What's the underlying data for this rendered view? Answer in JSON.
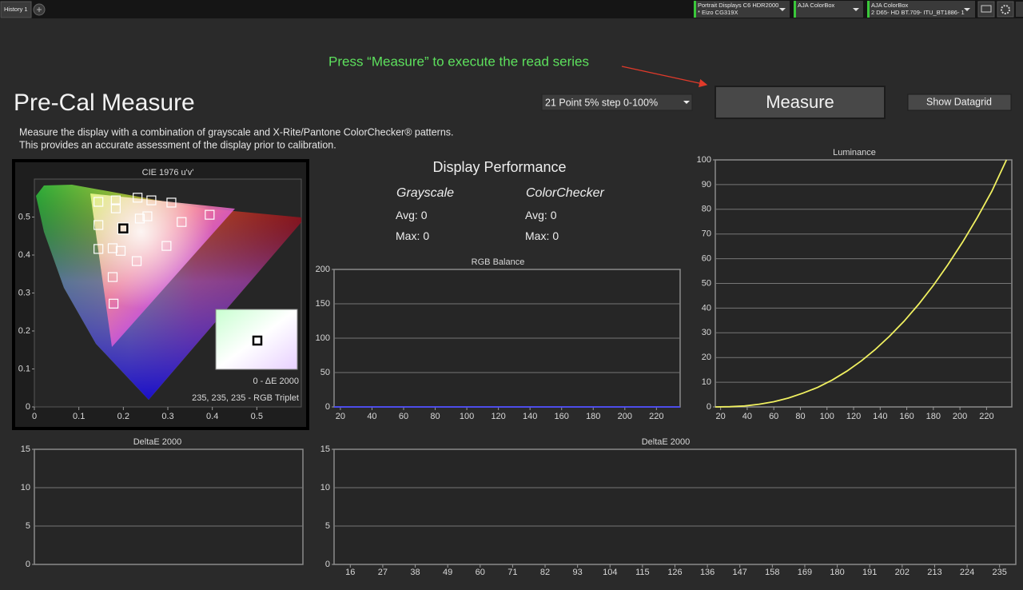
{
  "tabs": [
    "History 1"
  ],
  "toolbar": {
    "devices": [
      {
        "line1": "Portrait Displays C6 HDR2000",
        "line2": "* Eizo CG319X"
      },
      {
        "line1": "AJA ColorBox"
      },
      {
        "line1": "AJA ColorBox",
        "line2": "2 D65- HD BT.709- ITU_BT1886- 1"
      }
    ]
  },
  "hint": "Press “Measure” to execute the read series",
  "title": "Pre-Cal Measure",
  "pattern_select": "21 Point 5% step 0-100%",
  "buttons": {
    "measure": "Measure",
    "datagrid": "Show Datagrid"
  },
  "description": [
    "Measure the display with a combination of grayscale and X-Rite/Pantone ColorChecker® patterns.",
    "This provides an accurate assessment of the display prior to calibration."
  ],
  "performance": {
    "title": "Display Performance",
    "columns": [
      {
        "name": "Grayscale",
        "avg": {
          "label": "Avg:",
          "value": 0
        },
        "max": {
          "label": "Max:",
          "value": 0
        }
      },
      {
        "name": "ColorChecker",
        "avg": {
          "label": "Avg:",
          "value": 0
        },
        "max": {
          "label": "Max:",
          "value": 0
        }
      }
    ]
  },
  "chart_data": [
    {
      "type": "scatter",
      "title": "CIE 1976 u'v'",
      "x": [
        0.144,
        0.183,
        0.232,
        0.263,
        0.308,
        0.144,
        0.183,
        0.237,
        0.254,
        0.331,
        0.394,
        0.144,
        0.176,
        0.194,
        0.23,
        0.297,
        0.176,
        0.178
      ],
      "values": [
        0.54,
        0.544,
        0.551,
        0.544,
        0.538,
        0.479,
        0.523,
        0.496,
        0.502,
        0.487,
        0.506,
        0.416,
        0.418,
        0.411,
        0.384,
        0.424,
        0.342,
        0.272
      ],
      "current": {
        "x": 0.2,
        "y": 0.47
      },
      "color": "#ffffff",
      "annotations": [
        "0 - ΔE 2000",
        "235, 235, 235 - RGB Triplet"
      ],
      "xlim": [
        0,
        0.6
      ],
      "ylim": [
        0,
        0.6
      ],
      "xticks": [
        0,
        0.1,
        0.2,
        0.3,
        0.4,
        0.5
      ],
      "yticks": [
        0.1,
        0.2,
        0.3,
        0.4,
        0.5,
        0
      ]
    },
    {
      "type": "line",
      "title": "RGB Balance",
      "x": [
        16,
        27,
        38,
        49,
        60,
        71,
        82,
        93,
        104,
        115,
        126,
        136,
        147,
        158,
        169,
        180,
        191,
        202,
        213,
        224,
        235
      ],
      "values": [
        0,
        0,
        0,
        0,
        0,
        0,
        0,
        0,
        0,
        0,
        0,
        0,
        0,
        0,
        0,
        0,
        0,
        0,
        0,
        0,
        0
      ],
      "color": "#4a4aff",
      "xlim": [
        16,
        235
      ],
      "ylim": [
        0,
        200
      ],
      "xticks": [
        20,
        40,
        60,
        80,
        100,
        120,
        140,
        160,
        180,
        200,
        220
      ],
      "yticks": [
        0,
        50,
        100,
        150,
        200
      ],
      "grid": true
    },
    {
      "type": "line",
      "title": "Luminance",
      "x": [
        16,
        27,
        38,
        49,
        60,
        71,
        82,
        93,
        104,
        115,
        126,
        136,
        147,
        158,
        169,
        180,
        191,
        202,
        213,
        224,
        235
      ],
      "values": [
        0,
        0.1,
        0.4,
        1.1,
        2.1,
        3.6,
        5.6,
        7.9,
        10.9,
        14.5,
        18.7,
        23.1,
        28.6,
        34.7,
        41.6,
        49.2,
        57.6,
        66.7,
        76.6,
        87.3,
        100
      ],
      "color": "#f0f060",
      "xlim": [
        16,
        239
      ],
      "ylim": [
        0,
        100
      ],
      "xticks": [
        20,
        40,
        60,
        80,
        100,
        120,
        140,
        160,
        180,
        200,
        220
      ],
      "yticks": [
        0,
        10,
        20,
        30,
        40,
        50,
        60,
        70,
        80,
        90,
        100
      ],
      "grid": true
    },
    {
      "type": "bar",
      "title": "DeltaE 2000",
      "ylim": [
        0,
        15
      ],
      "yticks": [
        0,
        5,
        10,
        15
      ],
      "grid": true
    },
    {
      "type": "bar",
      "title": "DeltaE 2000",
      "categories": [
        16,
        27,
        38,
        49,
        60,
        71,
        82,
        93,
        104,
        115,
        126,
        136,
        147,
        158,
        169,
        180,
        191,
        202,
        213,
        224,
        235
      ],
      "ylim": [
        0,
        15
      ],
      "yticks": [
        0,
        5,
        10,
        15
      ],
      "grid": true
    }
  ]
}
